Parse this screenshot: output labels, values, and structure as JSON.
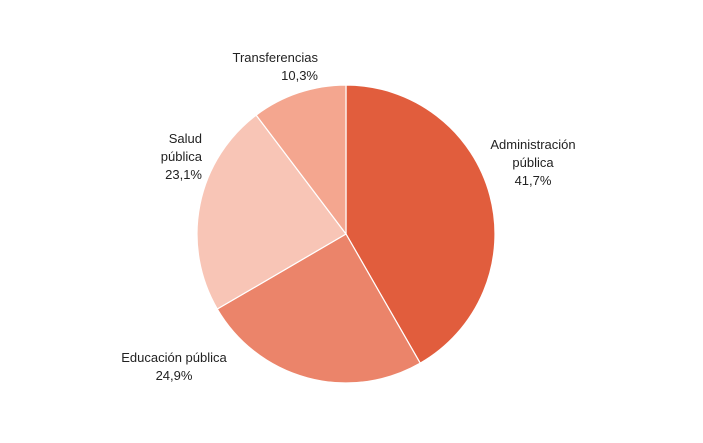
{
  "chart_data": {
    "type": "pie",
    "title": "",
    "start": "12 o'clock",
    "direction": "clockwise",
    "slice_border_color": "#ffffff",
    "slices": [
      {
        "label": [
          "Administración",
          "pública"
        ],
        "value": 41.7,
        "value_label": "41,7%",
        "color": "#e15d3d"
      },
      {
        "label": [
          "Educación pública"
        ],
        "value": 24.9,
        "value_label": "24,9%",
        "color": "#eb846a"
      },
      {
        "label": [
          "Salud",
          "pública"
        ],
        "value": 23.1,
        "value_label": "23,1%",
        "color": "#f8c5b6"
      },
      {
        "label": [
          "Transferencias"
        ],
        "value": 10.3,
        "value_label": "10,3%",
        "color": "#f4a68f"
      }
    ]
  }
}
